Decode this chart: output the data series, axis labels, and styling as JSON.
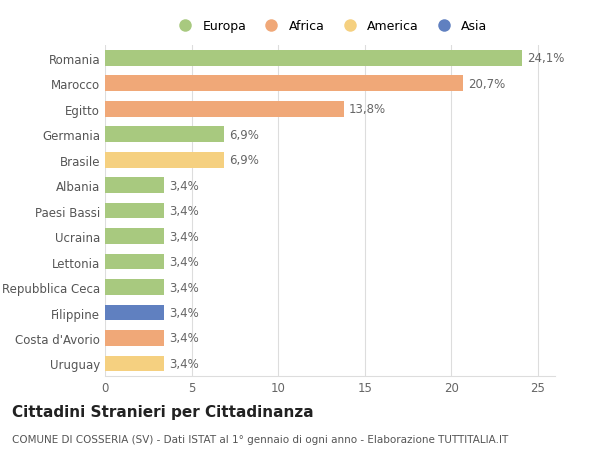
{
  "categories": [
    "Romania",
    "Marocco",
    "Egitto",
    "Germania",
    "Brasile",
    "Albania",
    "Paesi Bassi",
    "Ucraina",
    "Lettonia",
    "Repubblica Ceca",
    "Filippine",
    "Costa d'Avorio",
    "Uruguay"
  ],
  "values": [
    24.1,
    20.7,
    13.8,
    6.9,
    6.9,
    3.4,
    3.4,
    3.4,
    3.4,
    3.4,
    3.4,
    3.4,
    3.4
  ],
  "labels": [
    "24,1%",
    "20,7%",
    "13,8%",
    "6,9%",
    "6,9%",
    "3,4%",
    "3,4%",
    "3,4%",
    "3,4%",
    "3,4%",
    "3,4%",
    "3,4%",
    "3,4%"
  ],
  "colors": [
    "#a8c97f",
    "#f0a878",
    "#f0a878",
    "#a8c97f",
    "#f5d080",
    "#a8c97f",
    "#a8c97f",
    "#a8c97f",
    "#a8c97f",
    "#a8c97f",
    "#6080c0",
    "#f0a878",
    "#f5d080"
  ],
  "legend": [
    {
      "label": "Europa",
      "color": "#a8c97f"
    },
    {
      "label": "Africa",
      "color": "#f0a878"
    },
    {
      "label": "America",
      "color": "#f5d080"
    },
    {
      "label": "Asia",
      "color": "#6080c0"
    }
  ],
  "title": "Cittadini Stranieri per Cittadinanza",
  "subtitle": "COMUNE DI COSSERIA (SV) - Dati ISTAT al 1° gennaio di ogni anno - Elaborazione TUTTITALIA.IT",
  "xlim": [
    0,
    26
  ],
  "xticks": [
    0,
    5,
    10,
    15,
    20,
    25
  ],
  "background_color": "#ffffff",
  "grid_color": "#dddddd",
  "bar_height": 0.62,
  "label_fontsize": 8.5,
  "tick_fontsize": 8.5,
  "title_fontsize": 11,
  "subtitle_fontsize": 7.5
}
